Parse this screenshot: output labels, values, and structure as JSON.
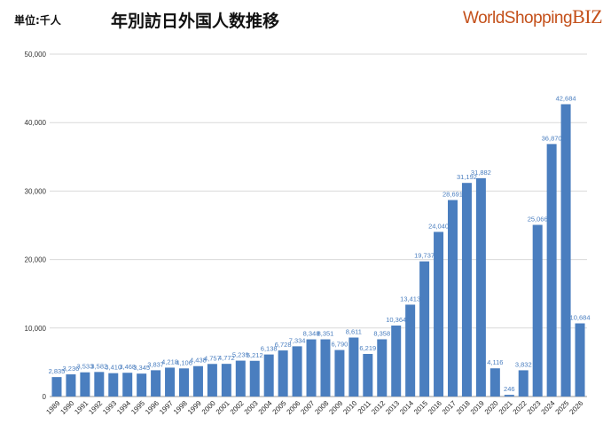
{
  "header": {
    "unit": "単位:千人",
    "logo": "WorldShoppingBIZ"
  },
  "colors": {
    "bar": "#4a7ebf",
    "label": "#4a7ebf",
    "grid": "#d9d9d9"
  },
  "chart_data": {
    "type": "bar",
    "title": "年別訪日外国人数推移",
    "ylim": [
      0,
      50000
    ],
    "yticks": [
      0,
      10000,
      20000,
      30000,
      40000,
      50000
    ],
    "ytick_labels": [
      "0",
      "10,000",
      "20,000",
      "30,000",
      "40,000",
      "50,000"
    ],
    "grid": true,
    "categories": [
      "1989",
      "1990",
      "1991",
      "1992",
      "1993",
      "1994",
      "1995",
      "1996",
      "1997",
      "1998",
      "1999",
      "2000",
      "2001",
      "2002",
      "2003",
      "2004",
      "2005",
      "2006",
      "2007",
      "2008",
      "2009",
      "2010",
      "2011",
      "2012",
      "2013",
      "2014",
      "2015",
      "2016",
      "2017",
      "2018",
      "2019",
      "2020",
      "2021",
      "2022",
      "2023",
      "2024",
      "2025",
      "2026"
    ],
    "values": [
      2835,
      3236,
      3533,
      3582,
      3410,
      3468,
      3345,
      3837,
      4218,
      4106,
      4438,
      4757,
      4772,
      5239,
      5212,
      6138,
      6728,
      7334,
      8348,
      8351,
      6790,
      8611,
      6219,
      8358,
      10364,
      13413,
      19737,
      24040,
      28691,
      31192,
      31882,
      4116,
      246,
      3832,
      25066,
      36870,
      42684,
      10684
    ]
  }
}
